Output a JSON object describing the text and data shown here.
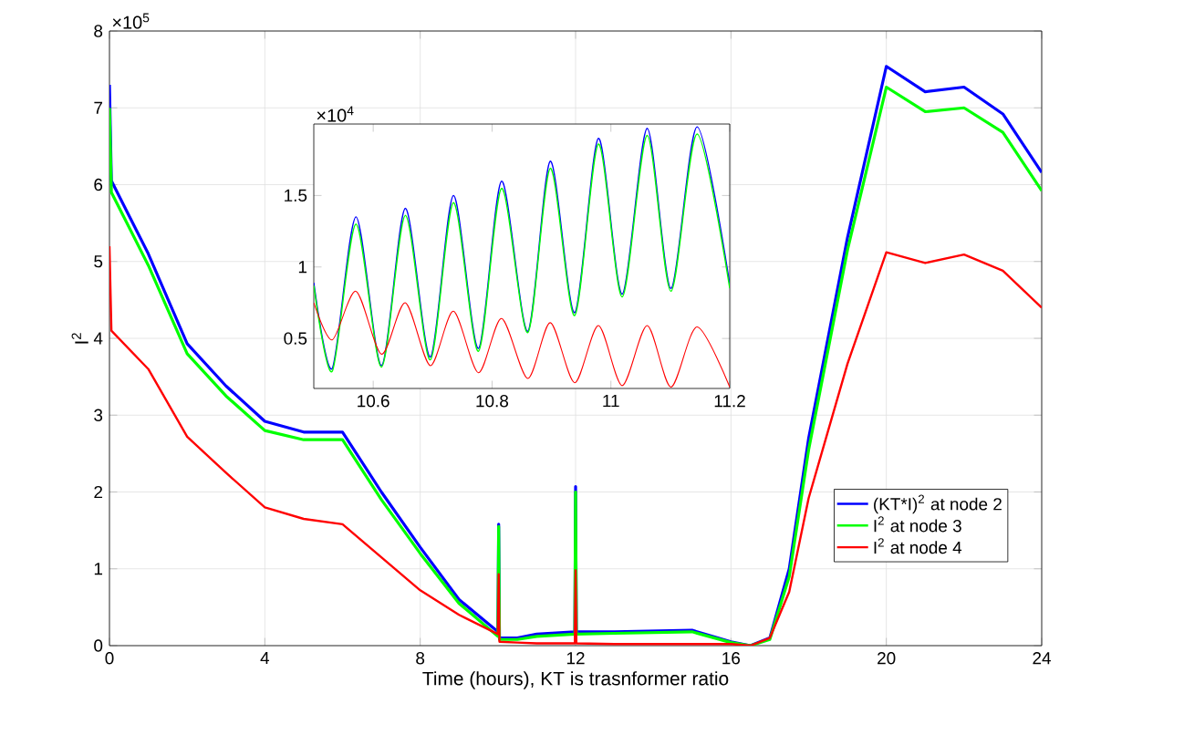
{
  "chart_data": [
    {
      "type": "line",
      "xlabel": "Time (hours), KT is trasnformer ratio",
      "ylabel": "I$^{2}$",
      "annotations": [
        "×10$^{5}$"
      ],
      "xlim": [
        0,
        24
      ],
      "xticks": [
        0,
        4,
        8,
        12,
        16,
        20,
        24
      ],
      "ylim": [
        0,
        8
      ],
      "yticks": [
        0,
        1,
        2,
        3,
        4,
        5,
        6,
        7,
        8
      ],
      "grid": true,
      "legend": "right",
      "x": [
        0,
        0.05,
        1,
        2,
        3,
        4,
        5,
        6,
        7,
        8,
        9,
        10,
        10.02,
        10.04,
        10.5,
        11,
        11.98,
        12,
        12.02,
        13,
        14,
        15,
        16,
        16.5,
        17,
        17.5,
        18,
        19,
        20,
        21,
        22,
        23,
        24
      ],
      "series": [
        {
          "name": "(KT*I)$^{2}$ at node 2",
          "color": "#0000ff",
          "values": [
            7.3,
            6.05,
            5.1,
            3.93,
            3.38,
            2.92,
            2.78,
            2.78,
            2.0,
            1.28,
            0.6,
            0.18,
            1.58,
            0.1,
            0.1,
            0.15,
            0.18,
            2.07,
            0.18,
            0.18,
            0.19,
            0.2,
            0.05,
            0,
            0.1,
            1.0,
            2.7,
            5.31,
            7.54,
            7.21,
            7.27,
            6.92,
            6.16
          ]
        },
        {
          "name": "I$^{2}$ at node 3",
          "color": "#00ff00",
          "values": [
            7.0,
            5.9,
            4.95,
            3.8,
            3.25,
            2.8,
            2.68,
            2.68,
            1.9,
            1.2,
            0.55,
            0.12,
            1.55,
            0.08,
            0.08,
            0.12,
            0.15,
            2.0,
            0.15,
            0.16,
            0.17,
            0.18,
            0.04,
            0,
            0.08,
            0.9,
            2.55,
            5.15,
            7.27,
            6.95,
            7.0,
            6.68,
            5.92
          ]
        },
        {
          "name": "I$^{2}$ at node 4",
          "color": "#ff0000",
          "values": [
            5.2,
            4.1,
            3.6,
            2.72,
            2.25,
            1.8,
            1.65,
            1.58,
            1.15,
            0.72,
            0.4,
            0.15,
            0.93,
            0.05,
            0.04,
            0.03,
            0.03,
            0.98,
            0.03,
            0.02,
            0.02,
            0.02,
            0.02,
            0,
            0.1,
            0.7,
            1.92,
            3.67,
            5.12,
            4.98,
            5.09,
            4.88,
            4.4
          ]
        }
      ]
    },
    {
      "type": "line",
      "annotations": [
        "×10$^{4}$"
      ],
      "xlim": [
        10.5,
        11.2
      ],
      "xticks": [
        10.6,
        10.8,
        11,
        11.2
      ],
      "ylim": [
        0.15,
        2.0
      ],
      "yticks": [
        0.5,
        1,
        1.5
      ],
      "x": [
        10.5,
        10.531,
        10.571,
        10.614,
        10.654,
        10.696,
        10.735,
        10.777,
        10.816,
        10.86,
        10.898,
        10.939,
        10.979,
        11.019,
        11.061,
        11.101,
        11.145,
        11.2
      ],
      "series": [
        {
          "color": "#0000ff",
          "values": [
            0.89,
            0.29,
            1.35,
            0.31,
            1.41,
            0.37,
            1.5,
            0.43,
            1.6,
            0.55,
            1.74,
            0.68,
            1.9,
            0.81,
            1.97,
            0.85,
            1.98,
            0.88
          ]
        },
        {
          "color": "#00ff00",
          "values": [
            0.87,
            0.27,
            1.3,
            0.3,
            1.36,
            0.35,
            1.45,
            0.41,
            1.55,
            0.54,
            1.69,
            0.66,
            1.86,
            0.79,
            1.92,
            0.83,
            1.93,
            0.85
          ]
        },
        {
          "color": "#ff0000",
          "values": [
            0.75,
            0.49,
            0.83,
            0.39,
            0.75,
            0.31,
            0.69,
            0.26,
            0.64,
            0.22,
            0.61,
            0.19,
            0.59,
            0.17,
            0.59,
            0.16,
            0.58,
            0.16
          ]
        }
      ]
    }
  ]
}
